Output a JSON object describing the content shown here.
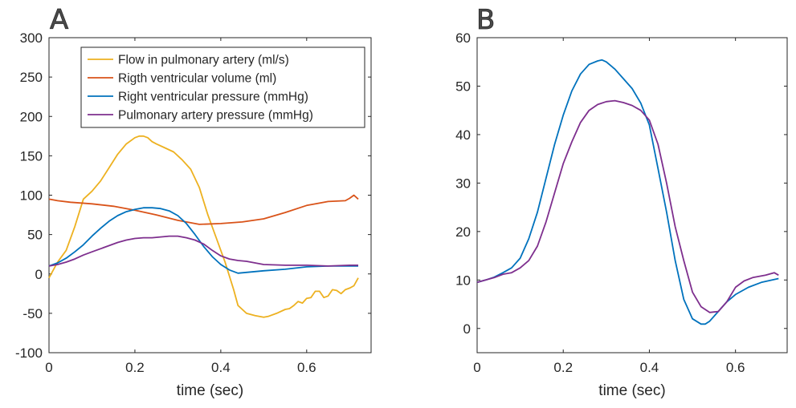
{
  "chart_data": [
    {
      "panel": "A",
      "type": "line",
      "xlabel": "time (sec)",
      "ylabel": "",
      "xlim": [
        0,
        0.75
      ],
      "ylim": [
        -100,
        300
      ],
      "xticks": [
        0,
        0.2,
        0.4,
        0.6
      ],
      "xtick_labels": [
        "0",
        "0.2",
        "0.4",
        "0.6"
      ],
      "yticks": [
        -100,
        -50,
        0,
        50,
        100,
        150,
        200,
        250,
        300
      ],
      "ytick_labels": [
        "-100",
        "-50",
        "0",
        "50",
        "100",
        "150",
        "200",
        "250",
        "300"
      ],
      "legend_position": "top-right",
      "grid": false,
      "series": [
        {
          "name": "Flow in pulmonary artery (ml/s)",
          "color": "#EDB120",
          "x": [
            0,
            0.02,
            0.04,
            0.06,
            0.08,
            0.1,
            0.12,
            0.14,
            0.16,
            0.18,
            0.2,
            0.21,
            0.22,
            0.23,
            0.24,
            0.25,
            0.27,
            0.29,
            0.31,
            0.33,
            0.35,
            0.37,
            0.39,
            0.41,
            0.43,
            0.44,
            0.46,
            0.48,
            0.5,
            0.51,
            0.53,
            0.55,
            0.56,
            0.57,
            0.58,
            0.59,
            0.6,
            0.61,
            0.62,
            0.63,
            0.64,
            0.65,
            0.66,
            0.67,
            0.68,
            0.69,
            0.7,
            0.71,
            0.72
          ],
          "y": [
            -5,
            15,
            30,
            60,
            95,
            105,
            118,
            135,
            152,
            165,
            173,
            175,
            175,
            173,
            168,
            165,
            160,
            155,
            145,
            133,
            110,
            75,
            45,
            15,
            -20,
            -40,
            -50,
            -53,
            -55,
            -54,
            -50,
            -45,
            -44,
            -40,
            -35,
            -37,
            -31,
            -30,
            -22,
            -22,
            -30,
            -28,
            -20,
            -21,
            -25,
            -20,
            -18,
            -15,
            -5
          ]
        },
        {
          "name": "Rigth ventricular volume (ml)",
          "color": "#D95319",
          "x": [
            0,
            0.02,
            0.05,
            0.1,
            0.15,
            0.2,
            0.25,
            0.3,
            0.35,
            0.4,
            0.45,
            0.5,
            0.55,
            0.6,
            0.65,
            0.69,
            0.7,
            0.71,
            0.72
          ],
          "y": [
            95,
            93,
            91,
            89,
            86,
            81,
            75,
            68,
            63,
            64,
            66,
            70,
            78,
            87,
            92,
            93,
            96,
            100,
            95
          ]
        },
        {
          "name": "Right ventricular pressure (mmHg)",
          "color": "#0072BD",
          "x": [
            0,
            0.02,
            0.04,
            0.06,
            0.08,
            0.1,
            0.12,
            0.14,
            0.16,
            0.18,
            0.2,
            0.22,
            0.24,
            0.26,
            0.28,
            0.3,
            0.32,
            0.34,
            0.36,
            0.38,
            0.4,
            0.42,
            0.44,
            0.46,
            0.48,
            0.5,
            0.55,
            0.6,
            0.65,
            0.7,
            0.72
          ],
          "y": [
            10,
            14,
            20,
            28,
            37,
            48,
            58,
            67,
            74,
            79,
            82,
            84,
            84,
            83,
            80,
            74,
            64,
            50,
            35,
            22,
            12,
            5,
            1,
            2,
            3,
            4,
            6,
            9,
            10,
            10,
            10
          ]
        },
        {
          "name": "Pulmonary artery pressure (mmHg)",
          "color": "#7E2F8E",
          "x": [
            0,
            0.02,
            0.04,
            0.06,
            0.08,
            0.1,
            0.12,
            0.14,
            0.16,
            0.18,
            0.2,
            0.22,
            0.24,
            0.26,
            0.28,
            0.3,
            0.32,
            0.34,
            0.36,
            0.38,
            0.4,
            0.42,
            0.44,
            0.46,
            0.48,
            0.5,
            0.55,
            0.6,
            0.65,
            0.7,
            0.72
          ],
          "y": [
            10,
            12,
            15,
            19,
            24,
            28,
            32,
            36,
            40,
            43,
            45,
            46,
            46,
            47,
            48,
            48,
            46,
            43,
            38,
            30,
            23,
            19,
            17,
            16,
            14,
            12,
            11,
            11,
            10,
            11,
            11
          ]
        }
      ]
    },
    {
      "panel": "B",
      "type": "line",
      "xlabel": "time (sec)",
      "ylabel": "",
      "xlim": [
        0,
        0.72
      ],
      "ylim": [
        -5,
        60
      ],
      "xticks": [
        0,
        0.2,
        0.4,
        0.6
      ],
      "xtick_labels": [
        "0",
        "0.2",
        "0.4",
        "0.6"
      ],
      "yticks": [
        0,
        10,
        20,
        30,
        40,
        50,
        60
      ],
      "ytick_labels": [
        "0",
        "10",
        "20",
        "30",
        "40",
        "50",
        "60"
      ],
      "grid": false,
      "series": [
        {
          "color": "#0072BD",
          "x": [
            0,
            0.02,
            0.04,
            0.06,
            0.08,
            0.1,
            0.12,
            0.14,
            0.16,
            0.18,
            0.2,
            0.22,
            0.24,
            0.26,
            0.28,
            0.29,
            0.3,
            0.32,
            0.34,
            0.36,
            0.38,
            0.4,
            0.42,
            0.44,
            0.46,
            0.48,
            0.5,
            0.52,
            0.53,
            0.54,
            0.56,
            0.58,
            0.6,
            0.63,
            0.66,
            0.7
          ],
          "y": [
            9.5,
            10,
            10.6,
            11.5,
            12.5,
            14.5,
            18.5,
            24,
            31,
            38,
            44,
            49,
            52.5,
            54.5,
            55.2,
            55.4,
            55,
            53.5,
            51.5,
            49.5,
            46.5,
            42,
            33,
            24,
            14,
            6,
            2,
            0.9,
            0.9,
            1.5,
            3.5,
            5.5,
            7,
            8.5,
            9.5,
            10.3
          ]
        },
        {
          "color": "#7E2F8E",
          "x": [
            0,
            0.02,
            0.04,
            0.06,
            0.08,
            0.1,
            0.12,
            0.14,
            0.16,
            0.18,
            0.2,
            0.22,
            0.24,
            0.26,
            0.28,
            0.3,
            0.32,
            0.34,
            0.36,
            0.38,
            0.4,
            0.42,
            0.44,
            0.46,
            0.48,
            0.5,
            0.52,
            0.54,
            0.56,
            0.58,
            0.6,
            0.62,
            0.64,
            0.67,
            0.69,
            0.7
          ],
          "y": [
            9.5,
            10,
            10.5,
            11.2,
            11.5,
            12.5,
            14,
            17,
            22,
            28,
            34,
            38.5,
            42.5,
            45,
            46.2,
            46.8,
            47,
            46.6,
            46,
            45,
            43,
            38,
            30,
            21,
            14,
            7.5,
            4.5,
            3.3,
            3.5,
            5.5,
            8.5,
            9.8,
            10.5,
            11,
            11.5,
            11
          ]
        }
      ]
    }
  ]
}
